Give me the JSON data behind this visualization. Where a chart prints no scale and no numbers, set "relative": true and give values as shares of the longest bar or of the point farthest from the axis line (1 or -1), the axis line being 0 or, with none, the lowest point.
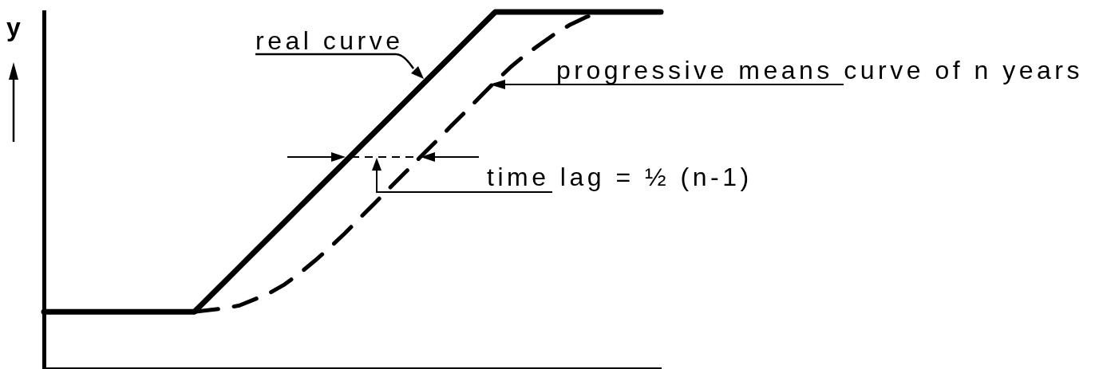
{
  "chart_data": {
    "type": "line",
    "relative": true,
    "ylabel": "y",
    "marker": "none",
    "tick_labels": false,
    "categories": [
      null,
      null,
      null,
      null,
      null,
      null,
      null,
      null,
      null,
      null,
      null,
      null,
      null,
      null,
      null,
      null,
      null,
      null,
      null,
      null,
      null,
      null,
      null,
      null,
      null,
      null,
      null,
      null,
      null,
      null,
      null,
      null,
      null,
      null,
      null,
      null,
      null,
      null,
      null,
      null,
      null,
      null
    ],
    "series": [
      {
        "name": "real curve",
        "color": "#000000",
        "line_style": "solid",
        "values": [
          0.16,
          0.16,
          0.16,
          0.16,
          0.16,
          0.16,
          0.16,
          0.16,
          0.16,
          0.16,
          0.16,
          0.202,
          0.244,
          0.286,
          0.328,
          0.37,
          0.412,
          0.454,
          0.496,
          0.538,
          0.58,
          0.622,
          0.664,
          0.706,
          0.748,
          0.79,
          0.832,
          0.874,
          0.916,
          0.958,
          1,
          1,
          1,
          1,
          1,
          1,
          1,
          1,
          1,
          1,
          1,
          1
        ]
      },
      {
        "name": "progressive means curve of n years",
        "color": "#000000",
        "line_style": "dashed",
        "values": [
          null,
          null,
          null,
          null,
          null,
          null,
          null,
          null,
          null,
          null,
          0.16,
          0.165,
          0.17,
          0.178,
          0.195,
          0.213,
          0.237,
          0.268,
          0.303,
          0.34,
          0.38,
          0.423,
          0.465,
          0.508,
          0.55,
          0.593,
          0.635,
          0.678,
          0.72,
          0.763,
          0.805,
          0.845,
          0.88,
          0.91,
          0.94,
          0.965,
          0.985,
          1,
          null,
          null,
          null,
          null
        ]
      }
    ],
    "annotations": [
      "time lag = ½ (n-1)"
    ]
  }
}
